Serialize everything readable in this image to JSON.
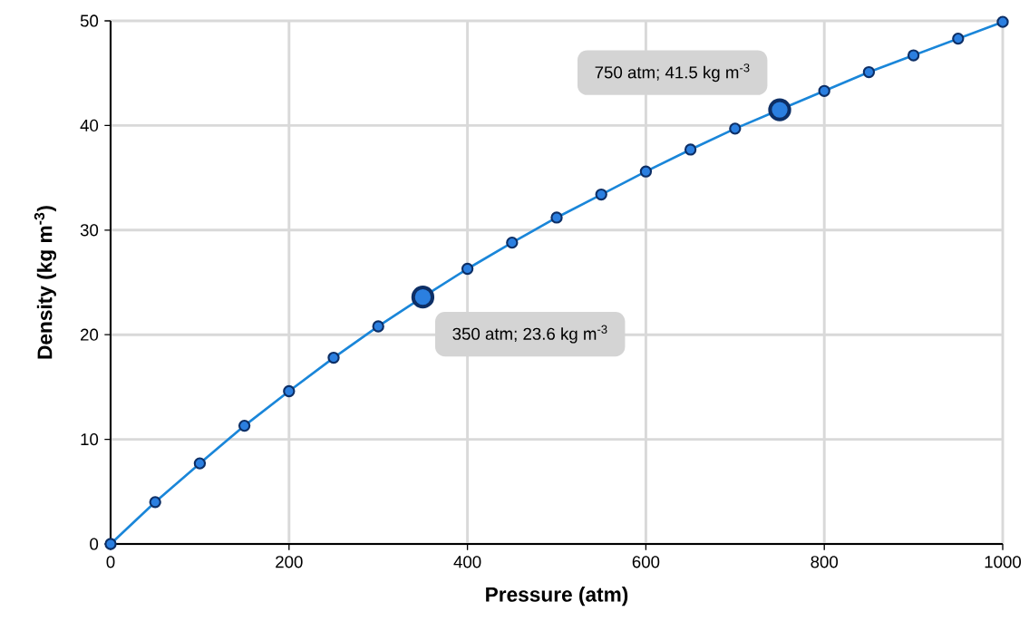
{
  "chart_data": {
    "type": "line",
    "xlabel": "Pressure (atm)",
    "ylabel": "Density (kg m$^{-3}$)",
    "x": [
      0,
      50,
      100,
      150,
      200,
      250,
      300,
      350,
      400,
      450,
      500,
      550,
      600,
      650,
      700,
      750,
      800,
      850,
      900,
      950,
      1000
    ],
    "values": [
      0,
      4.0,
      7.7,
      11.3,
      14.6,
      17.8,
      20.8,
      23.6,
      26.3,
      28.8,
      31.2,
      33.4,
      35.6,
      37.7,
      39.7,
      41.5,
      43.3,
      45.1,
      46.7,
      48.3,
      49.9
    ],
    "color": "#1a86d9",
    "xlim": [
      0,
      1000
    ],
    "ylim": [
      0,
      50
    ],
    "xticks": [
      0,
      200,
      400,
      600,
      800,
      1000
    ],
    "yticks": [
      0,
      10,
      20,
      30,
      40,
      50
    ],
    "grid": true,
    "marker": "circle",
    "line_style": "solid",
    "annotations": [
      {
        "text": "750 atm; 41.5 kg m$^{-3}$",
        "x": 750,
        "y": 41.5
      },
      {
        "text": "350 atm; 23.6 kg m$^{-3}$",
        "x": 350,
        "y": 23.6
      }
    ]
  }
}
